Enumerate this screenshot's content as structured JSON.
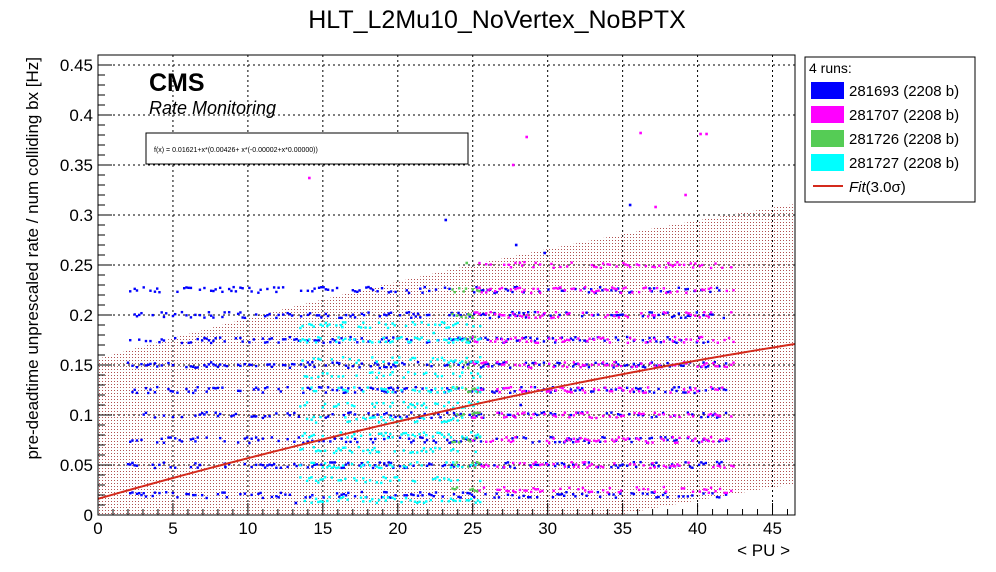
{
  "chart_data": {
    "type": "scatter",
    "title": "HLT_L2Mu10_NoVertex_NoBPTX",
    "xlabel": "< PU >",
    "ylabel": "pre-deadtime unprescaled rate / num colliding bx [Hz]",
    "xlim": [
      0,
      46.5
    ],
    "ylim": [
      0,
      0.46
    ],
    "x_ticks": [
      "0",
      "5",
      "10",
      "15",
      "20",
      "25",
      "30",
      "35",
      "40",
      "45"
    ],
    "x_tick_values": [
      0,
      5,
      10,
      15,
      20,
      25,
      30,
      35,
      40,
      45
    ],
    "y_ticks": [
      "0",
      "0.05",
      "0.1",
      "0.15",
      "0.2",
      "0.25",
      "0.3",
      "0.35",
      "0.4",
      "0.45"
    ],
    "y_tick_values": [
      0,
      0.05,
      0.1,
      0.15,
      0.2,
      0.25,
      0.3,
      0.35,
      0.4,
      0.45
    ],
    "grid": true,
    "legend_position": "outside-right",
    "cms_label": "CMS",
    "cms_sublabel": "Rate Monitoring",
    "fit_formula": "f(x) = 0.01621+x*(0.00426+ x*(-0.00002+x*0.00000))",
    "fit": {
      "name": "Fit(3.0σ)",
      "legend_prefix": "Fit",
      "legend_suffix": "(3.0σ)",
      "coefficients": [
        0.01621,
        0.00426,
        -2e-05,
        0.0
      ],
      "band_sigma": 3.0,
      "band_halfwidth": 0.14,
      "color": "#d42a1c",
      "band_color": "#b05050"
    },
    "legend_header": "4 runs:",
    "series": [
      {
        "name": "281693 (2208 b)",
        "color": "#0000ff",
        "pu_range": [
          2,
          42
        ],
        "levels": [
          0.02,
          0.05,
          0.075,
          0.1,
          0.125,
          0.15,
          0.175,
          0.2,
          0.225
        ],
        "outliers": [
          [
            2.3,
            0.052
          ],
          [
            6.8,
            0.05
          ],
          [
            8.5,
            0.048
          ],
          [
            13.2,
            0.012
          ],
          [
            23.2,
            0.295
          ],
          [
            27.9,
            0.27
          ],
          [
            29.8,
            0.262
          ],
          [
            35.5,
            0.31
          ],
          [
            28.2,
            0.11
          ]
        ]
      },
      {
        "name": "281707 (2208 b)",
        "color": "#ff00ff",
        "pu_range": [
          25,
          42.5
        ],
        "levels": [
          0.025,
          0.05,
          0.075,
          0.1,
          0.125,
          0.15,
          0.175,
          0.2,
          0.225,
          0.25
        ],
        "outliers": [
          [
            14.1,
            0.337
          ],
          [
            28.6,
            0.378
          ],
          [
            36.2,
            0.382
          ],
          [
            40.2,
            0.381
          ],
          [
            40.6,
            0.381
          ],
          [
            27.7,
            0.35
          ],
          [
            37.2,
            0.308
          ],
          [
            39.2,
            0.32
          ]
        ]
      },
      {
        "name": "281726 (2208 b)",
        "color": "#55cc55",
        "pu_range": [
          23.5,
          25.5
        ],
        "levels": [
          0.025,
          0.05,
          0.075,
          0.1,
          0.125,
          0.15,
          0.175,
          0.2,
          0.225
        ],
        "outliers": [
          [
            24.6,
            0.252
          ]
        ]
      },
      {
        "name": "281727 (2208 b)",
        "color": "#00ffff",
        "pu_range": [
          13.5,
          25.5
        ],
        "levels": [
          0.015,
          0.035,
          0.05,
          0.065,
          0.08,
          0.095,
          0.11,
          0.125,
          0.14,
          0.155,
          0.175,
          0.19
        ],
        "outliers": [
          [
            15.2,
            0.192
          ],
          [
            16.3,
            0.188
          ],
          [
            22.4,
            0.182
          ]
        ]
      }
    ]
  }
}
